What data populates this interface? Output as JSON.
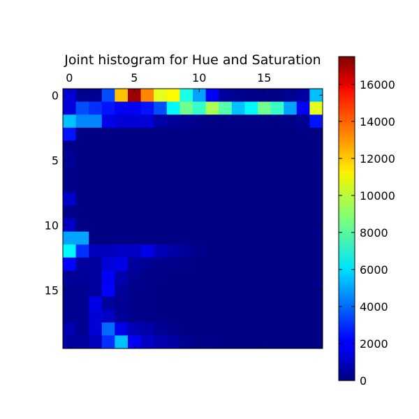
{
  "chart_data": {
    "type": "heatmap",
    "title": "Joint histogram for Hue and Saturation",
    "rows": 20,
    "cols": 20,
    "x_ticks": [
      0,
      5,
      10,
      15
    ],
    "y_ticks": [
      0,
      5,
      10,
      15
    ],
    "x_ticks_position": "top",
    "colormap": "jet",
    "colorbar": {
      "vmin": 0,
      "vmax": 17500,
      "ticks": [
        0,
        2000,
        4000,
        6000,
        8000,
        10000,
        12000,
        14000,
        16000
      ],
      "placement": "right"
    },
    "values": [
      [
        1500,
        300,
        300,
        3500,
        12000,
        17000,
        13000,
        10500,
        11000,
        7000,
        5000,
        2000,
        500,
        300,
        200,
        150,
        150,
        300,
        600,
        5500
      ],
      [
        1500,
        3500,
        3000,
        2500,
        2000,
        2000,
        2500,
        3500,
        6500,
        8500,
        7500,
        9500,
        8000,
        5500,
        6500,
        8500,
        7500,
        5000,
        2000,
        10500
      ],
      [
        5500,
        4500,
        4500,
        1800,
        1500,
        1500,
        1500,
        700,
        400,
        300,
        200,
        100,
        100,
        100,
        100,
        100,
        100,
        100,
        300,
        2500
      ],
      [
        2500,
        100,
        100,
        100,
        100,
        100,
        100,
        100,
        100,
        100,
        100,
        100,
        100,
        100,
        100,
        100,
        100,
        100,
        100,
        100
      ],
      [
        200,
        100,
        100,
        100,
        100,
        100,
        100,
        100,
        100,
        100,
        100,
        100,
        100,
        100,
        100,
        100,
        100,
        100,
        100,
        100
      ],
      [
        400,
        100,
        100,
        100,
        100,
        100,
        100,
        100,
        100,
        100,
        100,
        100,
        100,
        100,
        100,
        100,
        100,
        100,
        100,
        100
      ],
      [
        200,
        100,
        100,
        100,
        100,
        100,
        100,
        100,
        100,
        100,
        100,
        100,
        100,
        100,
        100,
        100,
        100,
        100,
        100,
        100
      ],
      [
        200,
        100,
        100,
        100,
        100,
        100,
        100,
        100,
        100,
        100,
        100,
        100,
        100,
        100,
        100,
        100,
        100,
        100,
        100,
        100
      ],
      [
        1300,
        100,
        100,
        100,
        100,
        100,
        100,
        100,
        100,
        100,
        100,
        100,
        100,
        100,
        100,
        100,
        100,
        100,
        100,
        100
      ],
      [
        200,
        100,
        100,
        100,
        100,
        100,
        100,
        100,
        100,
        100,
        100,
        100,
        100,
        100,
        100,
        100,
        100,
        100,
        100,
        100
      ],
      [
        1200,
        100,
        100,
        100,
        100,
        100,
        100,
        100,
        100,
        100,
        100,
        100,
        100,
        100,
        100,
        100,
        100,
        100,
        100,
        100
      ],
      [
        5000,
        5000,
        100,
        100,
        100,
        100,
        100,
        100,
        100,
        100,
        100,
        100,
        100,
        100,
        100,
        100,
        100,
        100,
        100,
        100
      ],
      [
        6500,
        3000,
        1000,
        1000,
        1200,
        1200,
        1800,
        1000,
        700,
        400,
        200,
        100,
        100,
        100,
        100,
        100,
        100,
        100,
        100,
        100
      ],
      [
        2200,
        500,
        500,
        1500,
        1800,
        500,
        300,
        200,
        200,
        150,
        100,
        100,
        100,
        100,
        100,
        100,
        100,
        100,
        100,
        100
      ],
      [
        400,
        400,
        500,
        2000,
        800,
        300,
        200,
        150,
        100,
        100,
        100,
        100,
        100,
        100,
        100,
        100,
        100,
        100,
        100,
        100
      ],
      [
        300,
        300,
        500,
        2200,
        500,
        200,
        150,
        100,
        100,
        100,
        100,
        100,
        100,
        100,
        100,
        100,
        100,
        100,
        100,
        100
      ],
      [
        300,
        300,
        1800,
        500,
        400,
        200,
        150,
        100,
        100,
        100,
        100,
        100,
        100,
        100,
        100,
        100,
        100,
        100,
        100,
        100
      ],
      [
        300,
        300,
        1500,
        1200,
        400,
        200,
        150,
        100,
        100,
        100,
        100,
        100,
        100,
        100,
        100,
        100,
        100,
        100,
        100,
        100
      ],
      [
        800,
        300,
        1500,
        4000,
        1800,
        900,
        700,
        400,
        200,
        100,
        100,
        100,
        100,
        100,
        100,
        100,
        100,
        100,
        100,
        100
      ],
      [
        600,
        500,
        1000,
        3000,
        5500,
        2000,
        1200,
        800,
        600,
        300,
        200,
        150,
        100,
        100,
        100,
        100,
        100,
        100,
        100,
        100
      ]
    ]
  }
}
